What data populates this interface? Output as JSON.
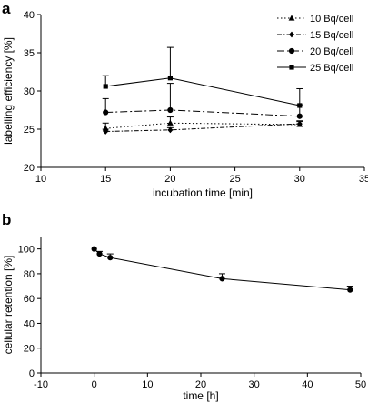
{
  "chart_data": [
    {
      "panel_label": "a",
      "type": "line",
      "xlabel": "incubation time [min]",
      "ylabel": "labelling efficiency [%]",
      "xlim": [
        10,
        35
      ],
      "ylim": [
        20,
        40
      ],
      "x_ticks": [
        10,
        15,
        20,
        25,
        30,
        35
      ],
      "y_ticks": [
        20,
        25,
        30,
        35,
        40
      ],
      "grid": false,
      "legend_position": "top-right",
      "x": [
        15,
        20,
        30
      ],
      "series": [
        {
          "name": "10 Bq/cell",
          "marker": "triangle",
          "dash": "dotted",
          "values": [
            25.1,
            25.8,
            25.6
          ],
          "errors": [
            0.7,
            0.8,
            0.5
          ]
        },
        {
          "name": "15 Bq/cell",
          "marker": "diamond",
          "dash": "dashdot-short",
          "values": [
            24.7,
            24.9,
            25.7
          ],
          "errors": [
            0.3,
            0.3,
            0.3
          ]
        },
        {
          "name": "20 Bq/cell",
          "marker": "circle",
          "dash": "dashdot",
          "values": [
            27.2,
            27.5,
            26.7
          ],
          "errors": [
            1.8,
            3.5,
            1.5
          ]
        },
        {
          "name": "25 Bq/cell",
          "marker": "square",
          "dash": "solid",
          "values": [
            30.6,
            31.7,
            28.1
          ],
          "errors": [
            1.4,
            4.0,
            2.2
          ]
        }
      ]
    },
    {
      "panel_label": "b",
      "type": "line",
      "xlabel": "time [h]",
      "ylabel": "cellular retention [%]",
      "xlim": [
        -10,
        50
      ],
      "ylim": [
        0,
        110
      ],
      "x_ticks": [
        -10,
        0,
        10,
        20,
        30,
        40,
        50
      ],
      "y_ticks": [
        0,
        20,
        40,
        60,
        80,
        100
      ],
      "grid": false,
      "series": [
        {
          "marker": "circle",
          "dash": "solid",
          "x": [
            0,
            1,
            3,
            24,
            48
          ],
          "values": [
            100,
            96,
            93,
            76,
            67
          ],
          "errors": [
            0,
            2,
            3,
            4,
            3
          ]
        }
      ]
    }
  ]
}
